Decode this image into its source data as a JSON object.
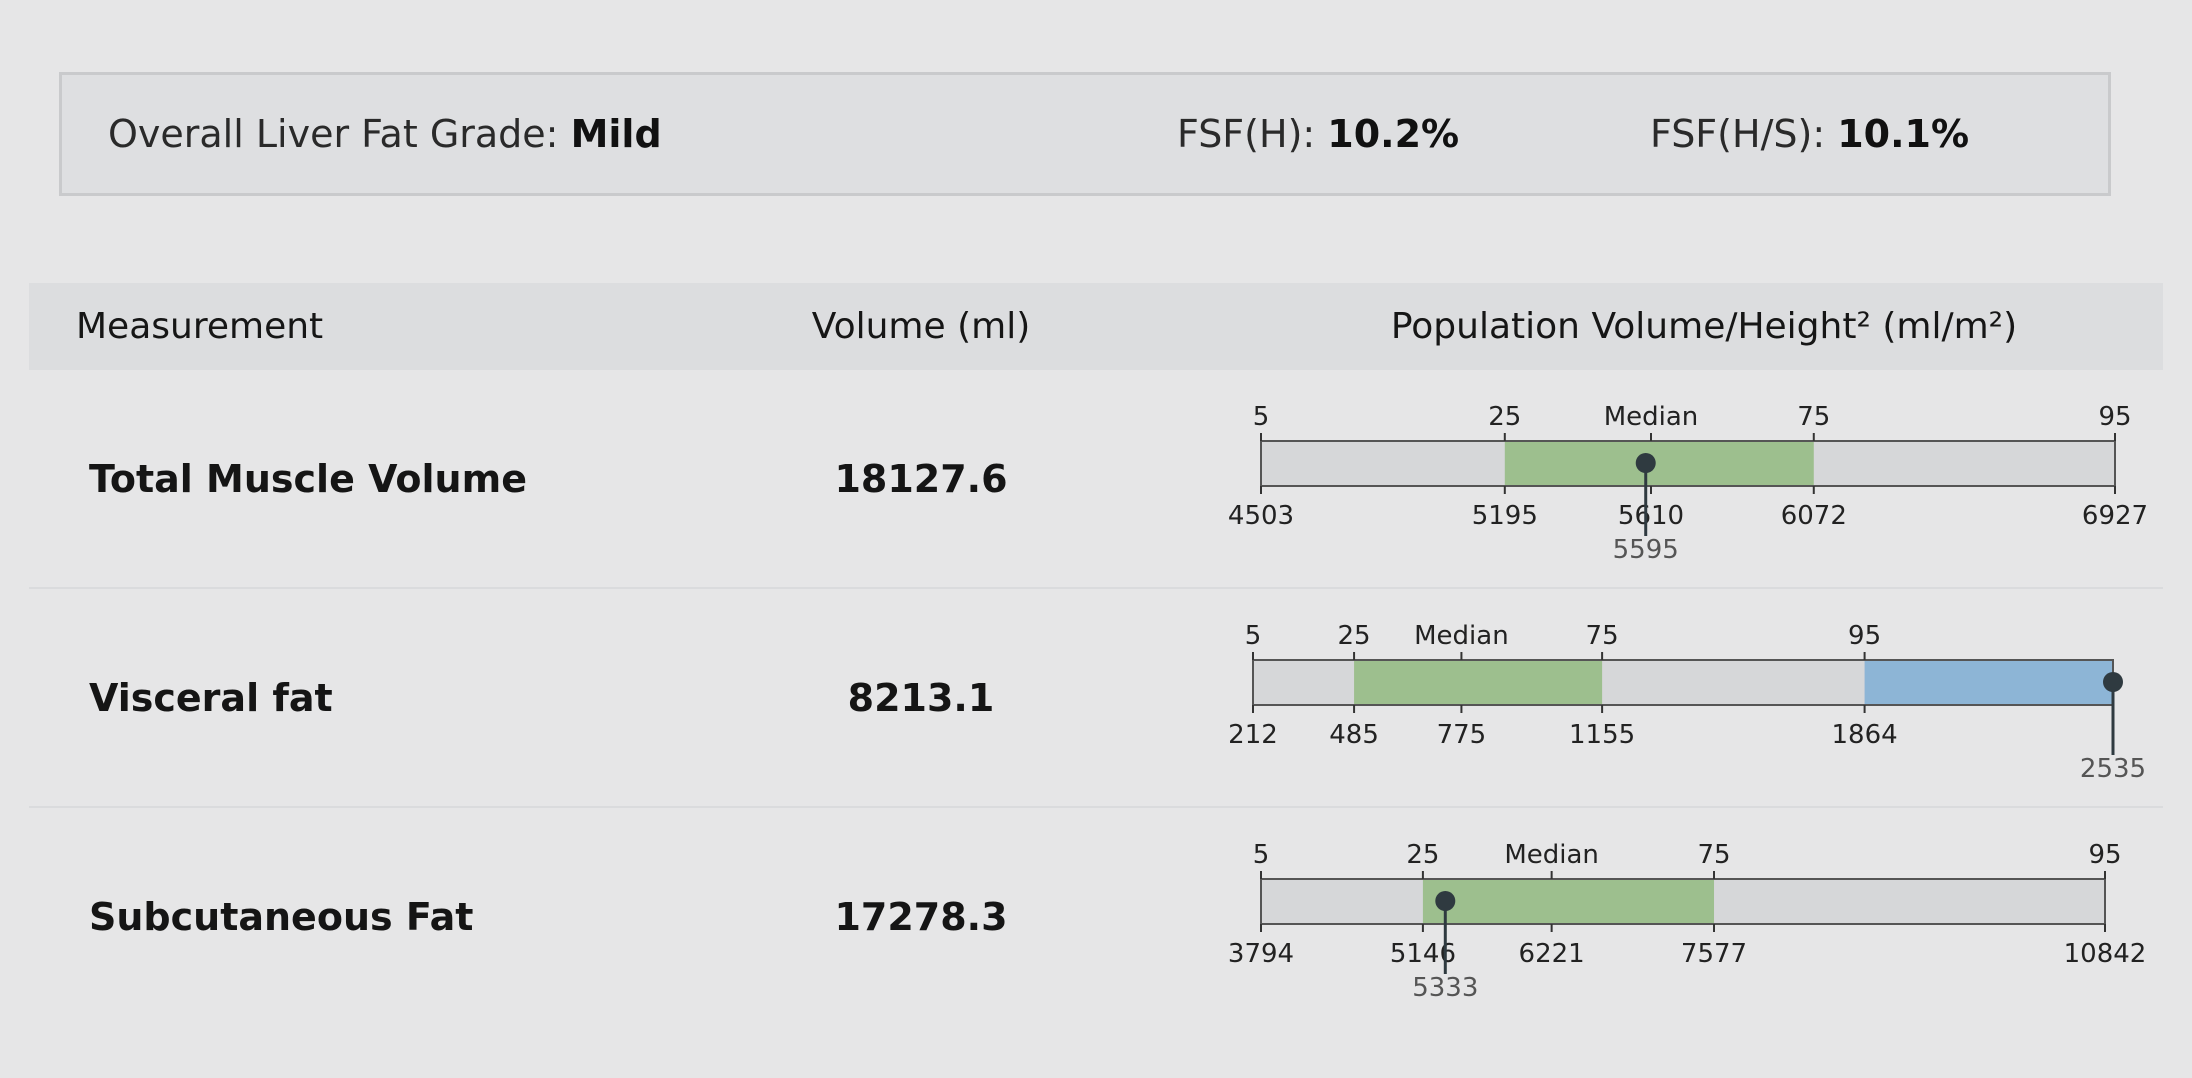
{
  "summary": {
    "grade_label": "Overall Liver Fat Grade:",
    "grade_value": "Mild",
    "fsfh_label": "FSF(H):",
    "fsfh_value": "10.2%",
    "fsfhs_label": "FSF(H/S):",
    "fsfhs_value": "10.1%"
  },
  "table": {
    "headers": {
      "measurement": "Measurement",
      "volume": "Volume (ml)",
      "population": "Population Volume/Height² (ml/m²)"
    },
    "rows": [
      {
        "name": "Total Muscle Volume",
        "volume": "18127.6"
      },
      {
        "name": "Visceral fat",
        "volume": "8213.1"
      },
      {
        "name": "Subcutaneous Fat",
        "volume": "17278.3"
      }
    ]
  },
  "colors": {
    "range_fill": "#d6d7d9",
    "iqr_fill": "#9dbf8e",
    "above_95_fill": "#8db5d6",
    "marker": "#2f3a40"
  },
  "chart_data": [
    {
      "type": "percentile-bar",
      "percentile_labels": [
        "5",
        "25",
        "Median",
        "75",
        "95"
      ],
      "percentile_values": [
        4503,
        5195,
        5610,
        6072,
        6927
      ],
      "patient_value": 5595,
      "highlight_above_95": false
    },
    {
      "type": "percentile-bar",
      "percentile_labels": [
        "5",
        "25",
        "Median",
        "75",
        "95"
      ],
      "percentile_values": [
        212,
        485,
        775,
        1155,
        1864
      ],
      "patient_value": 2535,
      "highlight_above_95": true
    },
    {
      "type": "percentile-bar",
      "percentile_labels": [
        "5",
        "25",
        "Median",
        "75",
        "95"
      ],
      "percentile_values": [
        3794,
        5146,
        6221,
        7577,
        10842
      ],
      "patient_value": 5333,
      "highlight_above_95": false
    }
  ]
}
